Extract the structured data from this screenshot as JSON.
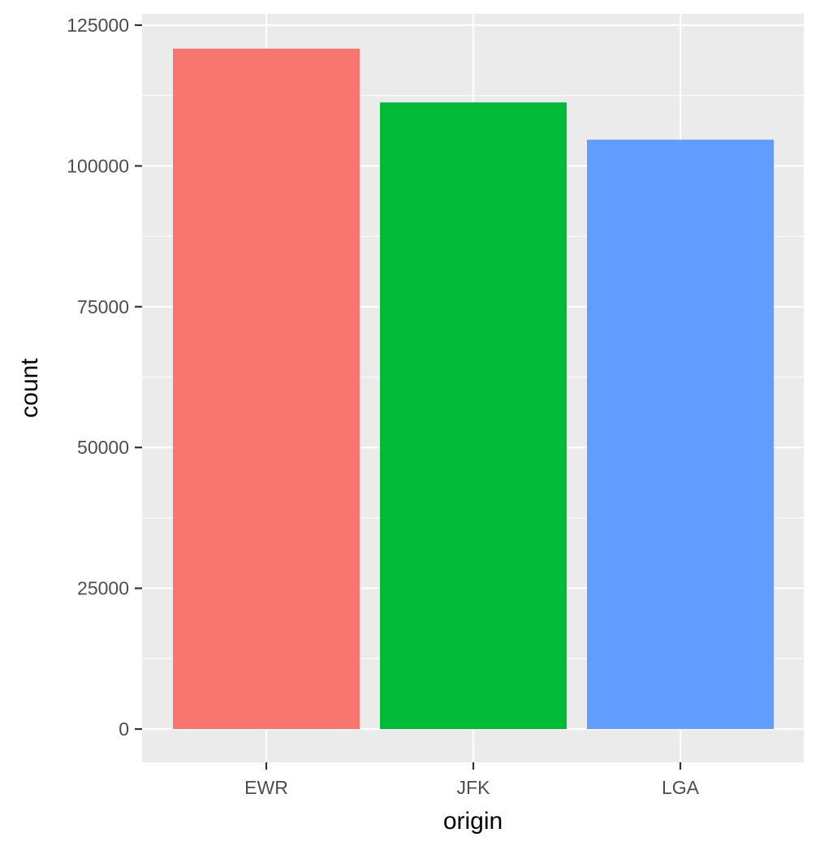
{
  "chart_data": {
    "type": "bar",
    "categories": [
      "EWR",
      "JFK",
      "LGA"
    ],
    "values": [
      120835,
      111279,
      104662
    ],
    "xlabel": "origin",
    "ylabel": "count",
    "ylim": [
      -5000,
      127000
    ],
    "yticks": [
      0,
      25000,
      50000,
      75000,
      100000,
      125000
    ],
    "ytick_labels": [
      "0",
      "25000",
      "50000",
      "75000",
      "100000",
      "125000"
    ],
    "grid": true,
    "colors": [
      "#F8766D",
      "#00BA38",
      "#619CFF"
    ],
    "panel_background": "#EBEBEB",
    "gridline_color": "#FFFFFF"
  }
}
